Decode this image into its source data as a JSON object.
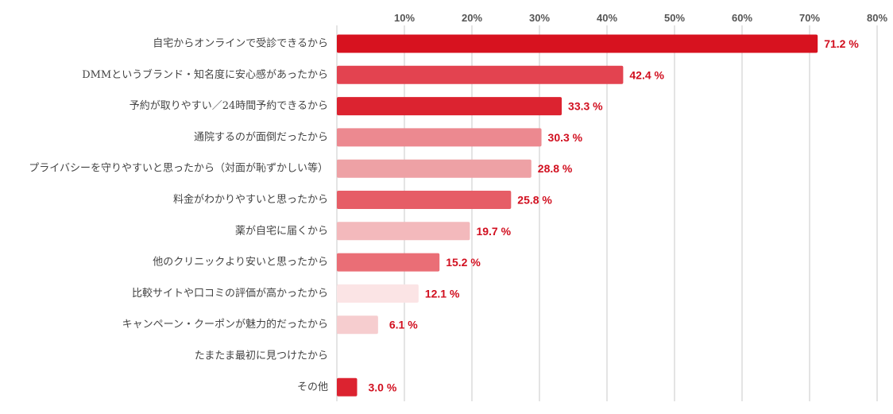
{
  "chart_data": {
    "type": "bar",
    "orientation": "horizontal",
    "xlim": [
      0,
      80
    ],
    "ticks": [
      "10%",
      "20%",
      "30%",
      "40%",
      "50%",
      "60%",
      "70%",
      "80%"
    ],
    "tick_values": [
      10,
      20,
      30,
      40,
      50,
      60,
      70,
      80
    ],
    "grid": true,
    "categories": [
      "自宅からオンラインで受診できるから",
      "DMMというブランド・知名度に安心感があったから",
      "予約が取りやすい／24時間予約できるから",
      "通院するのが面倒だったから",
      "プライバシーを守りやすいと思ったから（対面が恥ずかしい等）",
      "料金がわかりやすいと思ったから",
      "薬が自宅に届くから",
      "他のクリニックより安いと思ったから",
      "比較サイトや口コミの評価が高かったから",
      "キャンペーン・クーポンが魅力的だったから",
      "たまたま最初に見つけたから",
      "その他"
    ],
    "values": [
      71.2,
      42.4,
      33.3,
      30.3,
      28.8,
      25.8,
      19.7,
      15.2,
      12.1,
      6.1,
      null,
      3.0
    ],
    "value_labels": [
      "71.2 %",
      "42.4 %",
      "33.3 %",
      "30.3 %",
      "28.8 %",
      "25.8 %",
      "19.7 %",
      "15.2 %",
      "12.1 %",
      "6.1 %",
      "",
      "3.0 %"
    ],
    "bar_colors": [
      "#d7121f",
      "#e34350",
      "#dc2330",
      "#ec8990",
      "#eea1a5",
      "#e65d66",
      "#f3b9bc",
      "#ea6e76",
      "#fbe4e5",
      "#f6cdcf",
      "#ffffff",
      "#dc2330"
    ],
    "value_label_color": "#d10f1f",
    "gridline_color": "#c8c8c8"
  }
}
